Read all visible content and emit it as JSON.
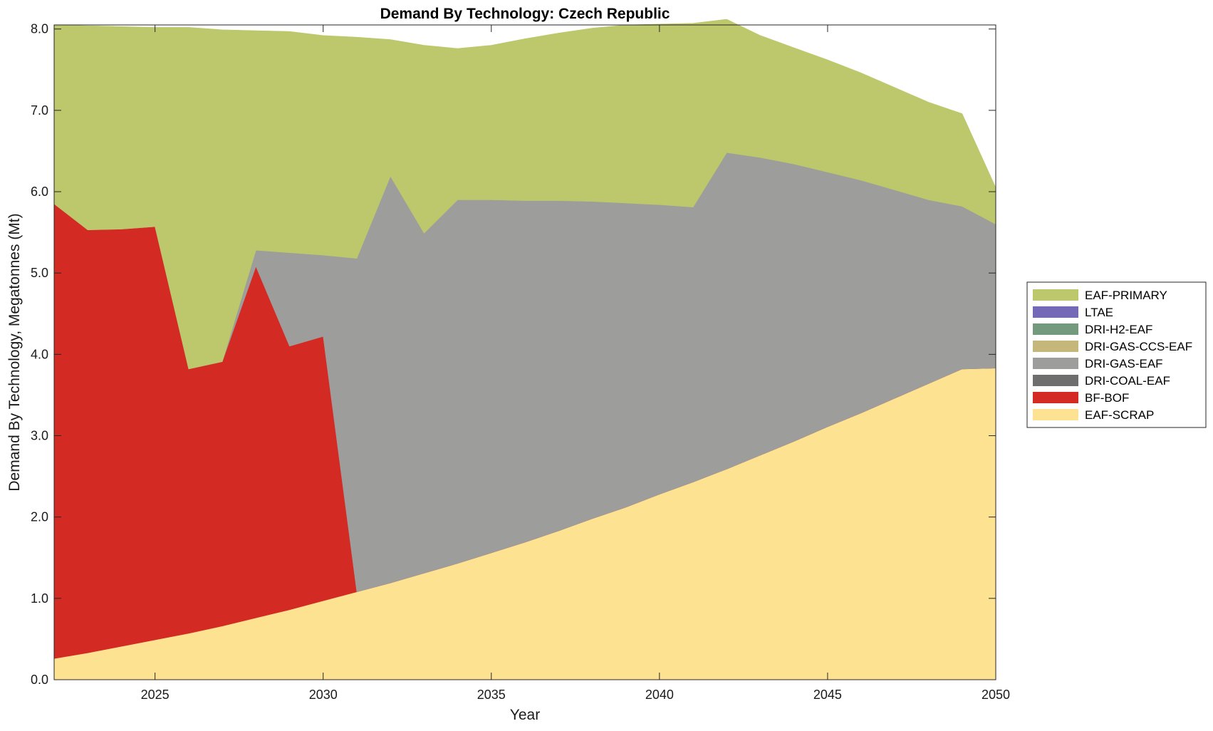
{
  "chart_data": {
    "type": "area",
    "stacked": true,
    "title": "Demand By Technology: Czech Republic",
    "xlabel": "Year",
    "ylabel": "Demand By Technology, Megatonnes (Mt)",
    "xlim": [
      2022,
      2050
    ],
    "ylim": [
      0,
      8.05
    ],
    "xticks": [
      2025,
      2030,
      2035,
      2040,
      2045,
      2050
    ],
    "yticks": [
      0,
      1,
      2,
      3,
      4,
      5,
      6,
      7,
      8
    ],
    "ytick_labels": [
      "0.0",
      "1.0",
      "2.0",
      "3.0",
      "4.0",
      "5.0",
      "6.0",
      "7.0",
      "8.0"
    ],
    "grid": false,
    "legend_position": "right",
    "x": [
      2022,
      2023,
      2024,
      2025,
      2026,
      2027,
      2028,
      2029,
      2030,
      2031,
      2032,
      2033,
      2034,
      2035,
      2036,
      2037,
      2038,
      2039,
      2040,
      2041,
      2042,
      2043,
      2044,
      2045,
      2046,
      2047,
      2048,
      2049,
      2050
    ],
    "series": [
      {
        "name": "EAF-SCRAP",
        "color": "#FDE292",
        "values": [
          0.26,
          0.33,
          0.41,
          0.49,
          0.57,
          0.66,
          0.76,
          0.86,
          0.97,
          1.08,
          1.19,
          1.31,
          1.43,
          1.56,
          1.69,
          1.83,
          1.98,
          2.12,
          2.28,
          2.43,
          2.59,
          2.76,
          2.93,
          3.11,
          3.28,
          3.46,
          3.64,
          3.82,
          3.83
        ]
      },
      {
        "name": "BF-BOF",
        "color": "#D32B24",
        "values": [
          5.59,
          5.2,
          5.13,
          5.08,
          3.25,
          3.25,
          4.32,
          3.24,
          3.25,
          0,
          0,
          0,
          0,
          0,
          0,
          0,
          0,
          0,
          0,
          0,
          0,
          0,
          0,
          0,
          0,
          0,
          0,
          0,
          0
        ]
      },
      {
        "name": "DRI-COAL-EAF",
        "color": "#6E6E6E",
        "values": [
          0,
          0,
          0,
          0,
          0,
          0,
          0,
          0,
          0,
          0,
          0,
          0,
          0,
          0,
          0,
          0,
          0,
          0,
          0,
          0,
          0,
          0,
          0,
          0,
          0,
          0,
          0,
          0,
          0
        ]
      },
      {
        "name": "DRI-GAS-EAF",
        "color": "#9D9D9B",
        "values": [
          0,
          0,
          0,
          0,
          0,
          0,
          0.2,
          1.15,
          1.0,
          4.1,
          5.0,
          4.18,
          4.47,
          4.34,
          4.2,
          4.06,
          3.9,
          3.74,
          3.56,
          3.38,
          3.89,
          3.66,
          3.41,
          3.13,
          2.86,
          2.56,
          2.26,
          2.0,
          1.77
        ]
      },
      {
        "name": "DRI-GAS-CCS-EAF",
        "color": "#C5B77A",
        "values": [
          0,
          0,
          0,
          0,
          0,
          0,
          0,
          0,
          0,
          0,
          0,
          0,
          0,
          0,
          0,
          0,
          0,
          0,
          0,
          0,
          0,
          0,
          0,
          0,
          0,
          0,
          0,
          0,
          0
        ]
      },
      {
        "name": "DRI-H2-EAF",
        "color": "#739A7C",
        "values": [
          0,
          0,
          0,
          0,
          0,
          0,
          0,
          0,
          0,
          0,
          0,
          0,
          0,
          0,
          0,
          0,
          0,
          0,
          0,
          0,
          0,
          0,
          0,
          0,
          0,
          0,
          0,
          0,
          0
        ]
      },
      {
        "name": "LTAE",
        "color": "#7469B7",
        "values": [
          0,
          0,
          0,
          0,
          0,
          0,
          0,
          0,
          0,
          0,
          0,
          0,
          0,
          0,
          0,
          0,
          0,
          0,
          0,
          0,
          0,
          0,
          0,
          0,
          0,
          0,
          0,
          0,
          0
        ]
      },
      {
        "name": "EAF-PRIMARY",
        "color": "#BDC76B",
        "values": [
          2.2,
          2.51,
          2.49,
          2.45,
          4.2,
          4.08,
          2.7,
          2.72,
          2.7,
          2.72,
          1.68,
          2.31,
          1.86,
          1.9,
          1.99,
          2.06,
          2.13,
          2.19,
          2.22,
          2.26,
          1.64,
          1.5,
          1.43,
          1.38,
          1.32,
          1.26,
          1.2,
          1.14,
          0.45
        ]
      }
    ],
    "legend_order": [
      "EAF-PRIMARY",
      "LTAE",
      "DRI-H2-EAF",
      "DRI-GAS-CCS-EAF",
      "DRI-GAS-EAF",
      "DRI-COAL-EAF",
      "BF-BOF",
      "EAF-SCRAP"
    ]
  }
}
